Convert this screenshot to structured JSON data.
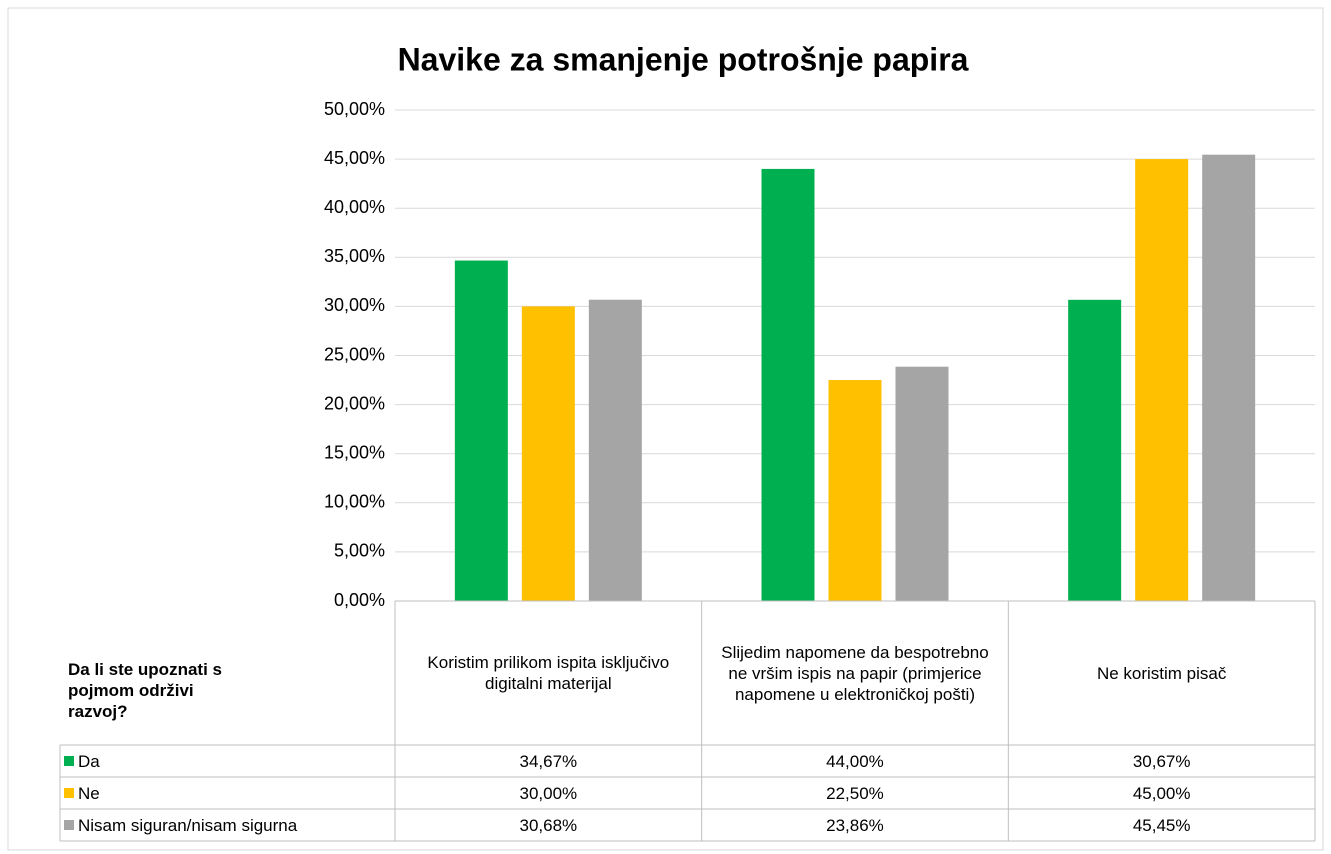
{
  "chart_data": {
    "type": "bar",
    "title": "Navike za smanjenje potrošnje papira",
    "table_header": "Da li ste upoznati s pojmom održivi razvoj?",
    "categories": [
      "Koristim prilikom ispita isključivo digitalni materijal",
      "Slijedim napomene da bespotrebno ne vršim ispis na papir (primjerice napomene u elektroničkoj pošti)",
      "Ne koristim pisač"
    ],
    "series": [
      {
        "name": "Da",
        "color": "#00b050",
        "values": [
          34.67,
          44.0,
          30.67
        ],
        "value_labels": [
          "34,67%",
          "44,00%",
          "30,67%"
        ]
      },
      {
        "name": "Ne",
        "color": "#ffc000",
        "values": [
          30.0,
          22.5,
          45.0
        ],
        "value_labels": [
          "30,00%",
          "22,50%",
          "45,00%"
        ]
      },
      {
        "name": "Nisam siguran/nisam sigurna",
        "color": "#a5a5a5",
        "values": [
          30.68,
          23.86,
          45.45
        ],
        "value_labels": [
          "30,68%",
          "23,86%",
          "45,45%"
        ]
      }
    ],
    "ylim": [
      0,
      50
    ],
    "yticks": [
      {
        "value": 0,
        "label": "0,00%"
      },
      {
        "value": 5,
        "label": "5,00%"
      },
      {
        "value": 10,
        "label": "10,00%"
      },
      {
        "value": 15,
        "label": "15,00%"
      },
      {
        "value": 20,
        "label": "20,00%"
      },
      {
        "value": 25,
        "label": "25,00%"
      },
      {
        "value": 30,
        "label": "30,00%"
      },
      {
        "value": 35,
        "label": "35,00%"
      },
      {
        "value": 40,
        "label": "40,00%"
      },
      {
        "value": 45,
        "label": "45,00%"
      },
      {
        "value": 50,
        "label": "50,00%"
      }
    ],
    "grid": true
  }
}
